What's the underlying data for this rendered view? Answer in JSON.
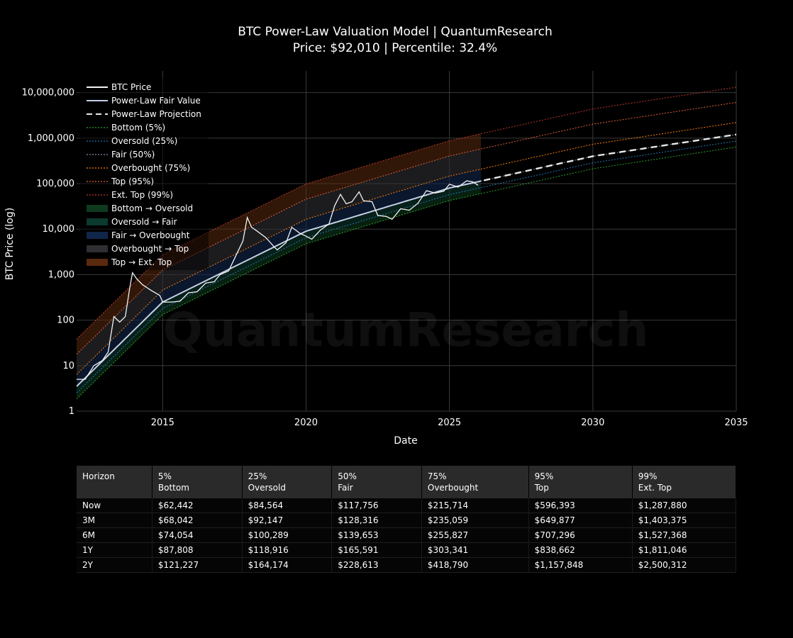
{
  "chart_data": {
    "type": "line",
    "title": "BTC Power-Law Valuation Model | QuantumResearch",
    "subtitle": "Price: $92,010 | Percentile: 32.4%",
    "xlabel": "Date",
    "ylabel": "BTC Price (log)",
    "xlim": [
      2012.0,
      2035.0
    ],
    "ylim": [
      1,
      30000000
    ],
    "yscale": "log",
    "x_ticks": [
      "2015",
      "2020",
      "2025",
      "2030",
      "2035"
    ],
    "y_ticks": [
      "1",
      "10",
      "100",
      "1,000",
      "10,000",
      "100,000",
      "1,000,000",
      "10,000,000"
    ],
    "grid": true,
    "legend_position": "top-left",
    "watermark": "QuantumResearch",
    "legend": [
      {
        "label": "BTC Price",
        "color": "#f2f2f2",
        "style": "solid"
      },
      {
        "label": "Power-Law Fair Value",
        "color": "#c5cfe6",
        "style": "solid"
      },
      {
        "label": "Power-Law Projection",
        "color": "#e8e8e8",
        "style": "dash"
      },
      {
        "label": "Bottom (5%)",
        "color": "#2ca02c",
        "style": "dot"
      },
      {
        "label": "Oversold (25%)",
        "color": "#1f77b4",
        "style": "dot"
      },
      {
        "label": "Fair (50%)",
        "color": "#7f8fa6",
        "style": "dot"
      },
      {
        "label": "Overbought (75%)",
        "color": "#ff7f0e",
        "style": "dot"
      },
      {
        "label": "Top (95%)",
        "color": "#e5603a",
        "style": "dot"
      },
      {
        "label": "Ext. Top (99%)",
        "color": "#c0392b",
        "style": "dot"
      },
      {
        "label": "Bottom → Oversold",
        "color": "#0e3a1e",
        "style": "fill"
      },
      {
        "label": "Oversold → Fair",
        "color": "#0c3a2e",
        "style": "fill"
      },
      {
        "label": "Fair → Overbought",
        "color": "#10264a",
        "style": "fill"
      },
      {
        "label": "Overbought → Top",
        "color": "#2e2e33",
        "style": "fill"
      },
      {
        "label": "Top → Ext. Top",
        "color": "#5a2a0e",
        "style": "fill"
      }
    ],
    "price_series": {
      "name": "BTC Price",
      "x": [
        2012.0,
        2012.3,
        2012.6,
        2012.9,
        2013.1,
        2013.3,
        2013.5,
        2013.7,
        2013.85,
        2013.95,
        2014.1,
        2014.3,
        2014.6,
        2014.9,
        2015.0,
        2015.3,
        2015.6,
        2015.9,
        2016.2,
        2016.5,
        2016.8,
        2017.0,
        2017.3,
        2017.6,
        2017.8,
        2017.95,
        2018.1,
        2018.3,
        2018.6,
        2018.9,
        2019.0,
        2019.3,
        2019.5,
        2019.8,
        2020.0,
        2020.2,
        2020.5,
        2020.8,
        2021.0,
        2021.2,
        2021.4,
        2021.6,
        2021.85,
        2022.0,
        2022.3,
        2022.5,
        2022.8,
        2023.0,
        2023.3,
        2023.6,
        2023.9,
        2024.2,
        2024.5,
        2024.8,
        2025.0,
        2025.3,
        2025.6,
        2025.8,
        2026.0
      ],
      "y": [
        5,
        5,
        10,
        13,
        20,
        120,
        90,
        120,
        500,
        1100,
        800,
        600,
        450,
        350,
        250,
        250,
        260,
        400,
        420,
        650,
        700,
        1000,
        1200,
        3000,
        5500,
        18000,
        11000,
        9000,
        6500,
        4000,
        3500,
        5000,
        11000,
        8000,
        7000,
        6000,
        9500,
        13000,
        33000,
        58000,
        36000,
        40000,
        66000,
        42000,
        40000,
        20000,
        19000,
        16500,
        28000,
        26000,
        37000,
        70000,
        62000,
        68000,
        97000,
        84000,
        115000,
        110000,
        92010
      ]
    },
    "current_price": 92010,
    "current_percentile": 32.4,
    "bands": [
      {
        "name": "Bottom (5%)",
        "multiplier": 0.53
      },
      {
        "name": "Oversold (25%)",
        "multiplier": 0.718
      },
      {
        "name": "Fair (50%)",
        "multiplier": 1.0
      },
      {
        "name": "Overbought (75%)",
        "multiplier": 1.832
      },
      {
        "name": "Top (95%)",
        "multiplier": 5.065
      },
      {
        "name": "Ext. Top (99%)",
        "multiplier": 10.94
      }
    ],
    "fair_value": {
      "x": [
        2012.0,
        2015.0,
        2020.0,
        2025.0,
        2030.0,
        2035.0
      ],
      "y": [
        3.5,
        250,
        9000,
        80000,
        400000,
        1200000
      ]
    },
    "historical_end_year": 2026.15
  },
  "table": {
    "headers": [
      {
        "line1": "Horizon",
        "line2": ""
      },
      {
        "line1": "5%",
        "line2": "Bottom"
      },
      {
        "line1": "25%",
        "line2": "Oversold"
      },
      {
        "line1": "50%",
        "line2": "Fair"
      },
      {
        "line1": "75%",
        "line2": "Overbought"
      },
      {
        "line1": "95%",
        "line2": "Top"
      },
      {
        "line1": "99%",
        "line2": "Ext. Top"
      }
    ],
    "rows": [
      [
        "Now",
        "$62,442",
        "$84,564",
        "$117,756",
        "$215,714",
        "$596,393",
        "$1,287,880"
      ],
      [
        "3M",
        "$68,042",
        "$92,147",
        "$128,316",
        "$235,059",
        "$649,877",
        "$1,403,375"
      ],
      [
        "6M",
        "$74,054",
        "$100,289",
        "$139,653",
        "$255,827",
        "$707,296",
        "$1,527,368"
      ],
      [
        "1Y",
        "$87,808",
        "$118,916",
        "$165,591",
        "$303,341",
        "$838,662",
        "$1,811,046"
      ],
      [
        "2Y",
        "$121,227",
        "$164,174",
        "$228,613",
        "$418,790",
        "$1,157,848",
        "$2,500,312"
      ]
    ]
  }
}
